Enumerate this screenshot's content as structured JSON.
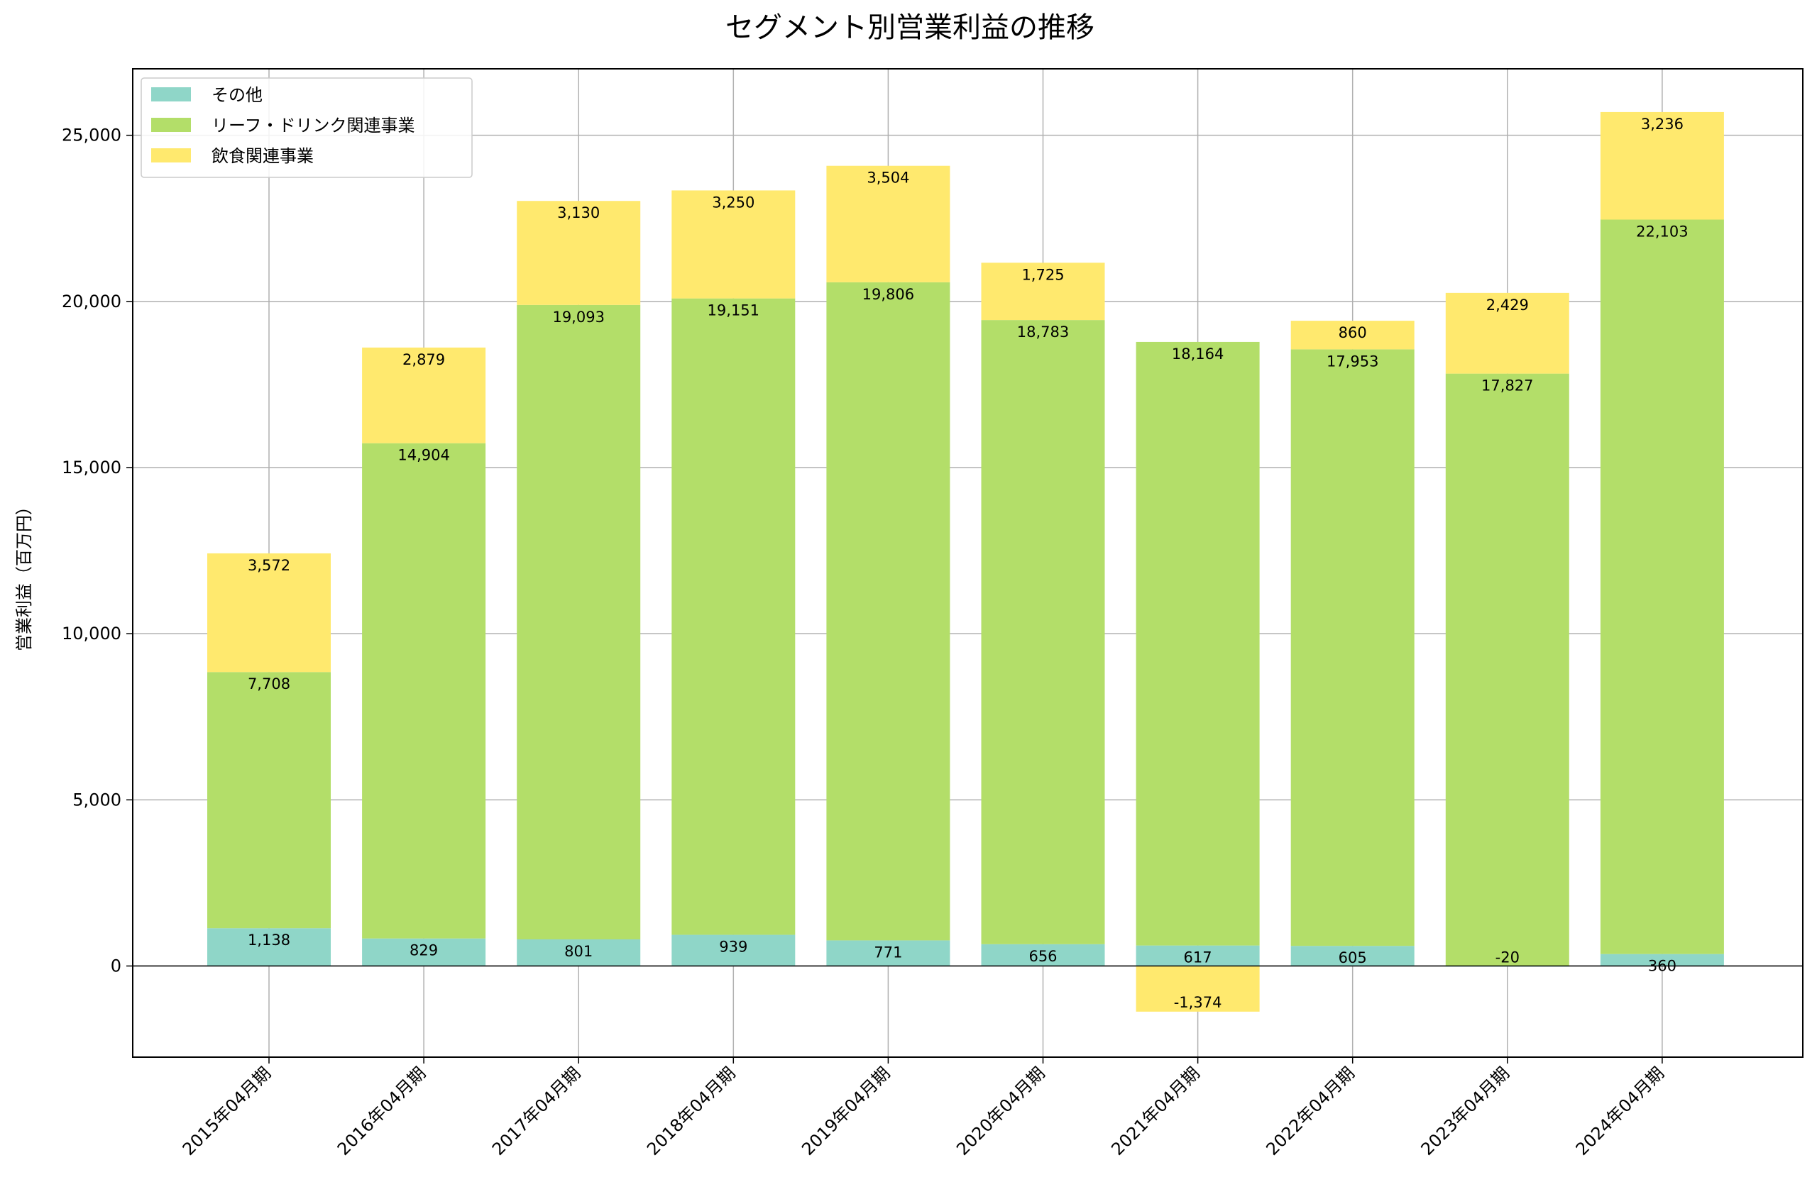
{
  "chart_data": {
    "type": "bar",
    "stacked": true,
    "title": "セグメント別営業利益の推移",
    "xlabel": "",
    "ylabel": "営業利益（百万円）",
    "ylim": [
      -2743,
      27000
    ],
    "yticks": [
      0,
      5000,
      10000,
      15000,
      20000,
      25000
    ],
    "ytick_labels": [
      "0",
      "5,000",
      "10,000",
      "15,000",
      "20,000",
      "25,000"
    ],
    "grid": true,
    "legend_position": "top-left",
    "categories": [
      "2015年04月期",
      "2016年04月期",
      "2017年04月期",
      "2018年04月期",
      "2019年04月期",
      "2020年04月期",
      "2021年04月期",
      "2022年04月期",
      "2023年04月期",
      "2024年04月期"
    ],
    "series": [
      {
        "name": "その他",
        "color": "#8fd6c8",
        "values": [
          1138,
          829,
          801,
          939,
          771,
          656,
          617,
          605,
          -20,
          360
        ],
        "labels": [
          "1,138",
          "829",
          "801",
          "939",
          "771",
          "656",
          "617",
          "605",
          "-20",
          "360"
        ]
      },
      {
        "name": "リーフ・ドリンク関連事業",
        "color": "#b3de69",
        "values": [
          7708,
          14904,
          19093,
          19151,
          19806,
          18783,
          18164,
          17953,
          17827,
          22103
        ],
        "labels": [
          "7,708",
          "14,904",
          "19,093",
          "19,151",
          "19,806",
          "18,783",
          "18,164",
          "17,953",
          "17,827",
          "22,103"
        ]
      },
      {
        "name": "飲食関連事業",
        "color": "#ffe96e",
        "values": [
          3572,
          2879,
          3130,
          3250,
          3504,
          1725,
          -1374,
          860,
          2429,
          3236
        ],
        "labels": [
          "3,572",
          "2,879",
          "3,130",
          "3,250",
          "3,504",
          "1,725",
          "-1,374",
          "860",
          "2,429",
          "3,236"
        ]
      }
    ]
  }
}
